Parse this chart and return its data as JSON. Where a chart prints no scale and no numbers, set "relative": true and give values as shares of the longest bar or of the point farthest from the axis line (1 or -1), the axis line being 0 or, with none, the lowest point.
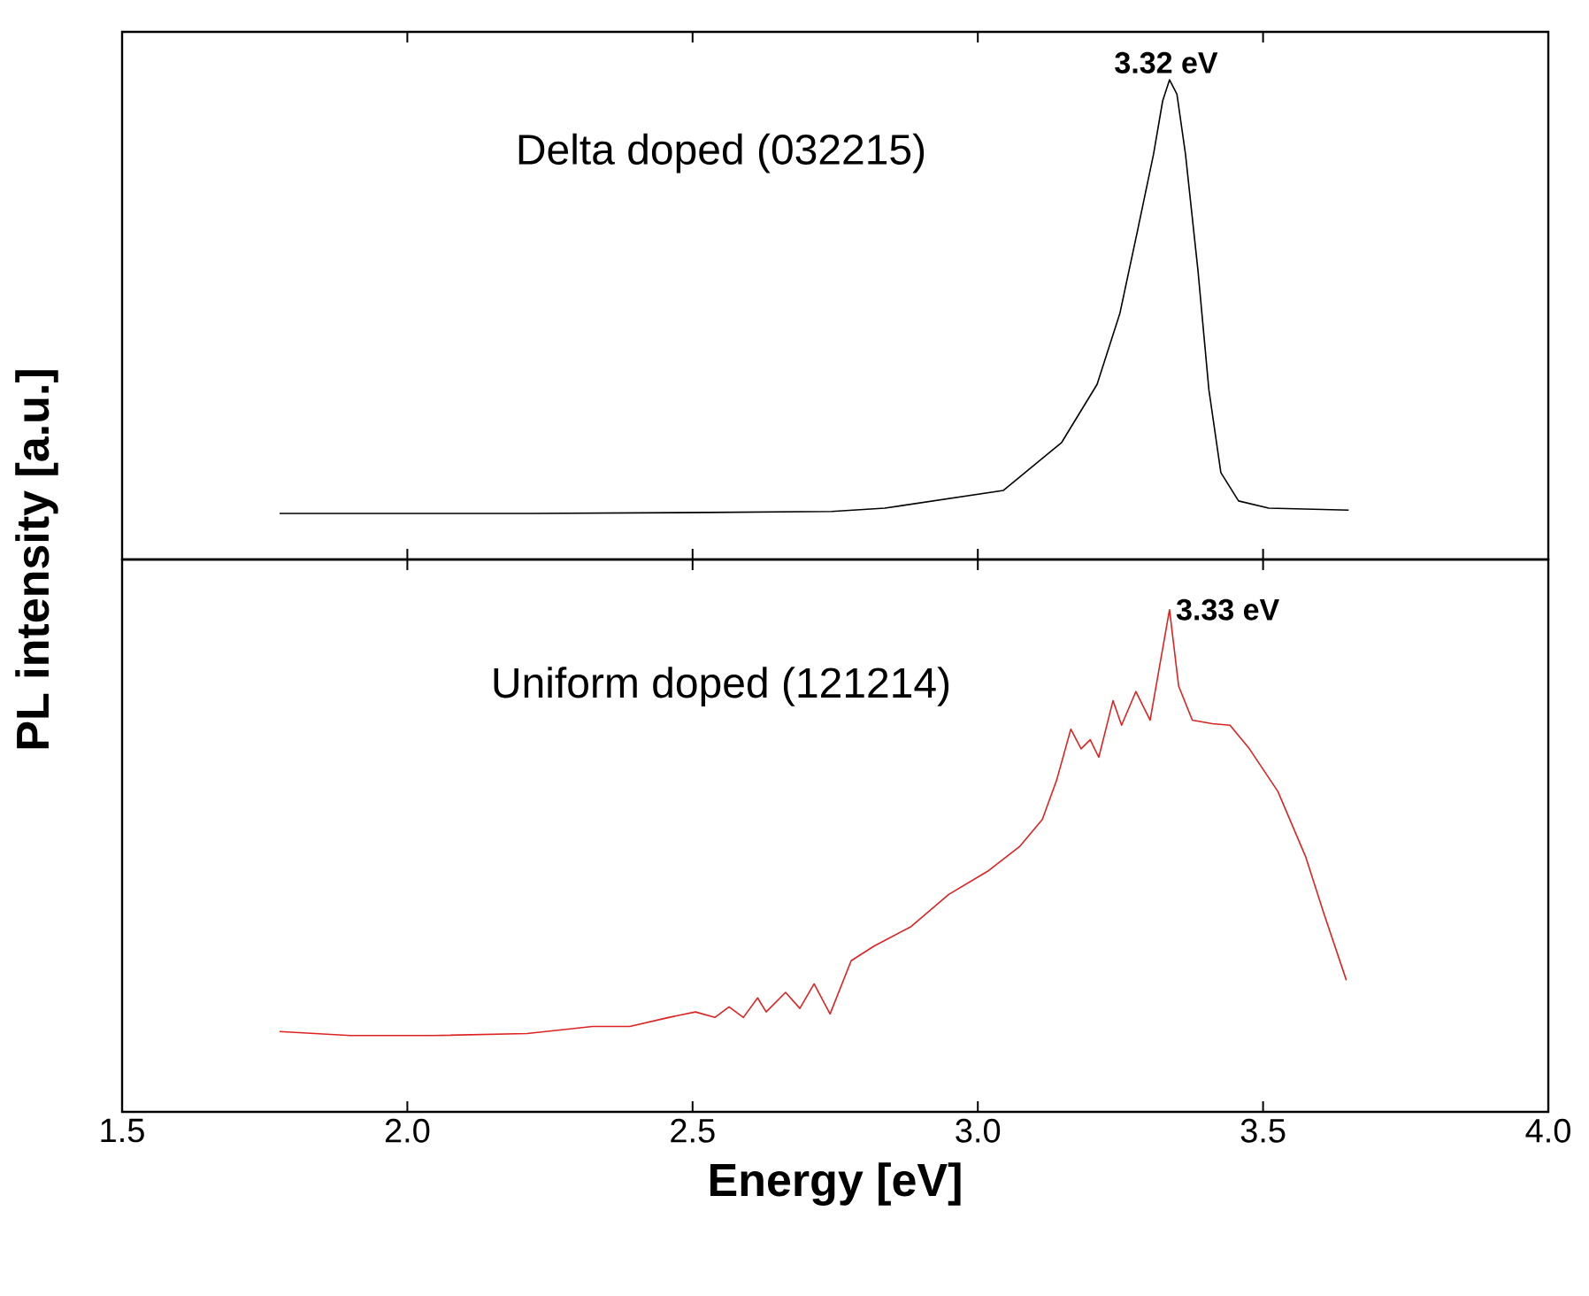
{
  "chart_data": [
    {
      "type": "line",
      "relative": true,
      "xlim": [
        1.5,
        4.0
      ],
      "xticks": [
        1.5,
        2.0,
        2.5,
        3.0,
        3.5,
        4.0
      ],
      "tick_labels": false,
      "annotations": [
        "Delta doped (032215)",
        {
          "text": "3.32 eV",
          "x": 3.33,
          "y": 1.0
        }
      ],
      "series": [
        {
          "color": "#000000",
          "x": [
            1.776,
            2.217,
            2.527,
            2.744,
            2.837,
            3.045,
            3.147,
            3.209,
            3.249,
            3.28,
            3.308,
            3.324,
            3.336,
            3.349,
            3.364,
            3.386,
            3.405,
            3.426,
            3.457,
            3.51,
            3.65
          ],
          "values": [
            0.096,
            0.096,
            0.098,
            0.1,
            0.107,
            0.144,
            0.244,
            0.365,
            0.513,
            0.686,
            0.845,
            0.956,
            1.0,
            0.97,
            0.845,
            0.601,
            0.354,
            0.181,
            0.122,
            0.107,
            0.103
          ]
        }
      ]
    },
    {
      "type": "line",
      "relative": true,
      "xlim": [
        1.5,
        4.0
      ],
      "tick_labels": "x",
      "xlabel": "Energy [eV]",
      "ylabel": "PL intensity [a.u.]",
      "xticks": [
        1.5,
        {
          "value": 2.0,
          "label": "2.0"
        },
        2.5,
        {
          "value": 3.0,
          "label": "3.0"
        },
        3.5,
        {
          "value": 4.0,
          "label": "4.0"
        }
      ],
      "annotations": [
        "Uniform doped (121214)",
        {
          "text": "3.33 eV",
          "x": 3.336,
          "y": 1.0
        }
      ],
      "series": [
        {
          "color": "#dd2222",
          "x": [
            1.776,
            1.9,
            2.046,
            2.21,
            2.325,
            2.39,
            2.458,
            2.505,
            2.539,
            2.564,
            2.589,
            2.614,
            2.629,
            2.663,
            2.688,
            2.713,
            2.741,
            2.778,
            2.818,
            2.883,
            2.949,
            3.017,
            3.073,
            3.113,
            3.138,
            3.163,
            3.181,
            3.197,
            3.212,
            3.237,
            3.252,
            3.277,
            3.302,
            3.336,
            3.352,
            3.376,
            3.411,
            3.442,
            3.476,
            3.526,
            3.575,
            3.606,
            3.646
          ],
          "values": [
            0.16,
            0.152,
            0.152,
            0.156,
            0.17,
            0.17,
            0.188,
            0.199,
            0.188,
            0.209,
            0.188,
            0.227,
            0.199,
            0.238,
            0.206,
            0.255,
            0.195,
            0.301,
            0.33,
            0.369,
            0.433,
            0.479,
            0.528,
            0.582,
            0.66,
            0.762,
            0.723,
            0.741,
            0.706,
            0.819,
            0.77,
            0.837,
            0.78,
            1.0,
            0.848,
            0.78,
            0.773,
            0.77,
            0.723,
            0.638,
            0.507,
            0.397,
            0.262
          ]
        }
      ]
    }
  ]
}
